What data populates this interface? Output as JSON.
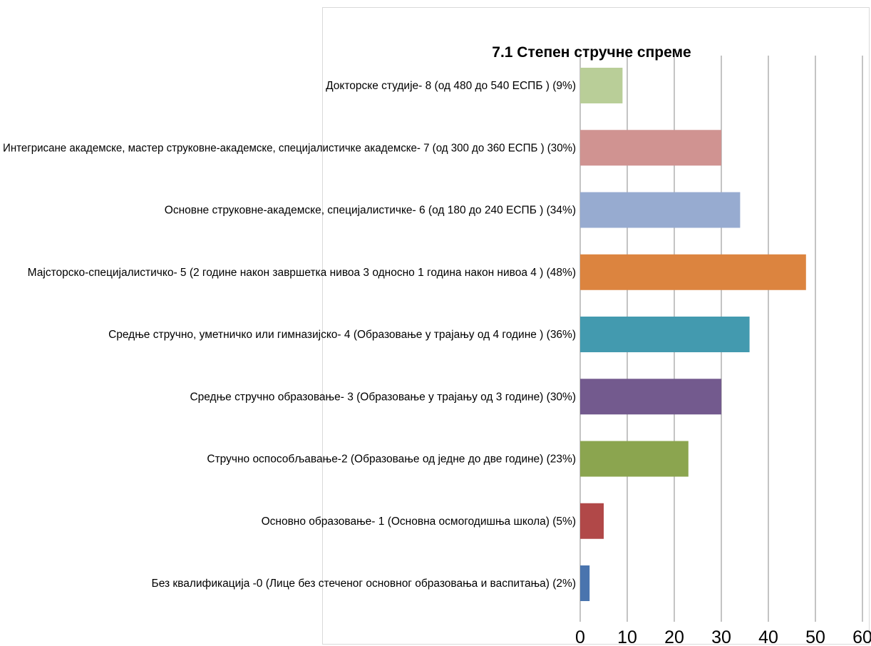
{
  "chart_data": {
    "type": "bar",
    "orientation": "horizontal",
    "title": "7.1 Степен стручне спреме",
    "xlabel": "",
    "ylabel": "",
    "xlim": [
      0,
      60
    ],
    "ticks": [
      0,
      10,
      20,
      30,
      40,
      50,
      60
    ],
    "grid": true,
    "categories": [
      "Докторске студије- 8 (од 480 до 540 ЕСПБ ) (9%)",
      "Интегрисане академске, мастер струковне-академске, специјалистичке академске- 7 (од 300 до 360 ЕСПБ ) (30%)",
      "Основне струковне-академске, специјалистичке- 6 (од 180 до 240 ЕСПБ ) (34%)",
      "Мајсторско-специјалистичко- 5 (2 године након завршетка нивоа 3 односно 1 година након нивоа 4 ) (48%)",
      "Средње стручно, уметничко или гимназијско- 4 (Образовање у трајању од 4 године ) (36%)",
      "Средње стручно образовање- 3 (Образовање у трајању од 3 године) (30%)",
      "Стручно оспособљавање-2 (Образовање од једне до две године) (23%)",
      "Основно образовање- 1 (Основна осмогодишња школа) (5%)",
      "Без квалификација -0 (Лице без стеченог основног образовања и васпитања) (2%)"
    ],
    "values": [
      9,
      30,
      34,
      48,
      36,
      30,
      23,
      5,
      2
    ],
    "colors": [
      "#b9ce98",
      "#d09391",
      "#97abd0",
      "#dc843f",
      "#439aaf",
      "#735a8e",
      "#8ba54f",
      "#b14848",
      "#4974ae"
    ],
    "gridline_color": "#888888"
  }
}
